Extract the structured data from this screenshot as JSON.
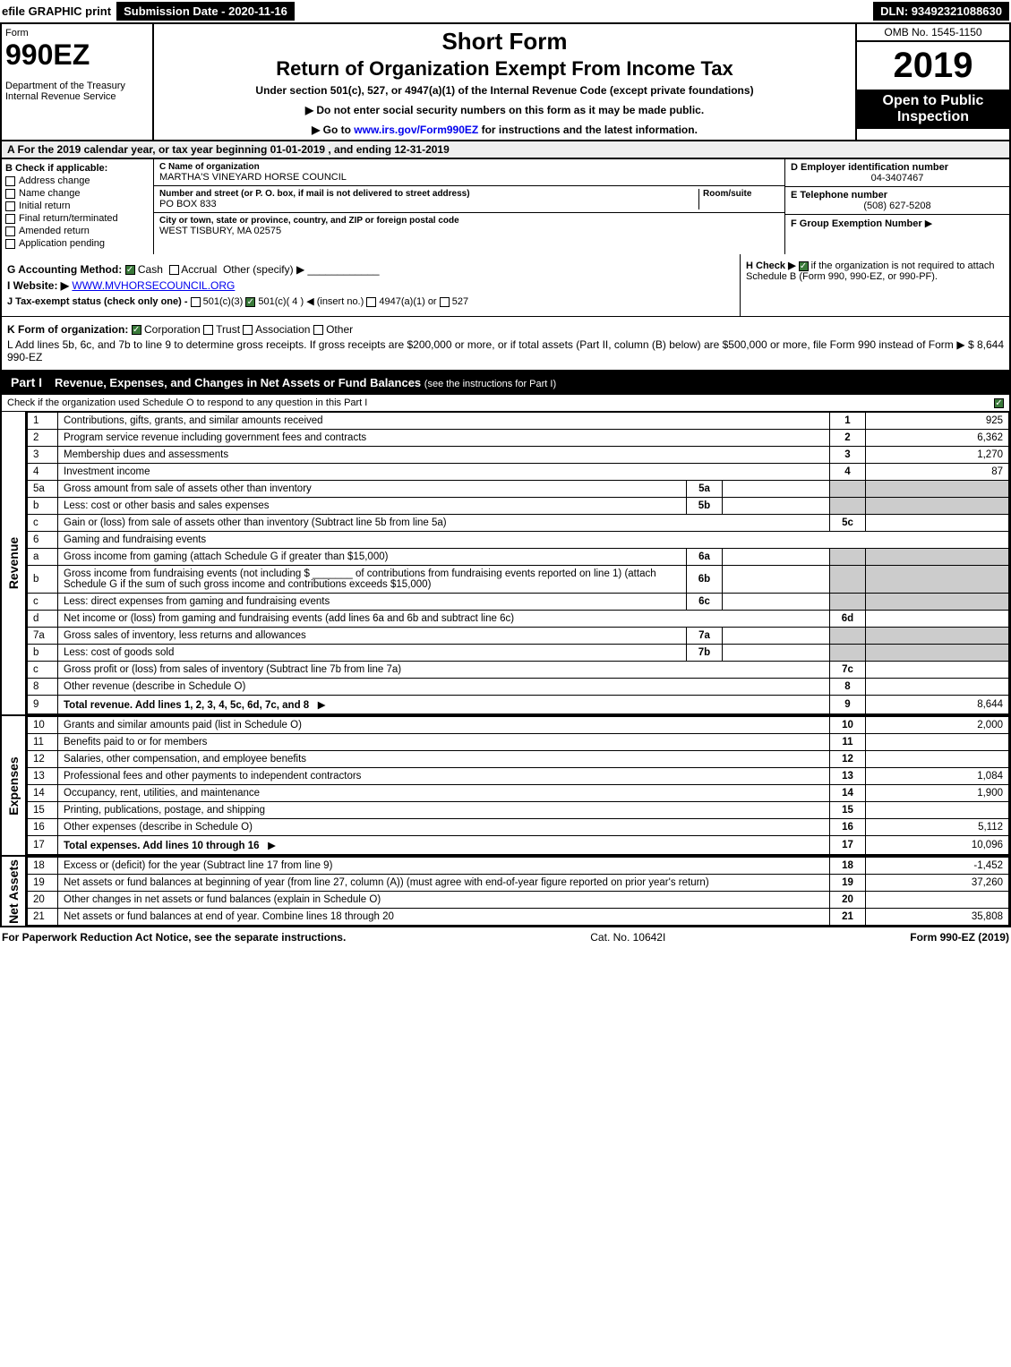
{
  "colors": {
    "black": "#000000",
    "white": "#ffffff",
    "grey_header": "#eeeeee",
    "grey_cell": "#cccccc",
    "check_green": "#3a7a3a",
    "link_blue": "#0000ee"
  },
  "top_bar": {
    "efile": "efile GRAPHIC print",
    "submission": "Submission Date - 2020-11-16",
    "dln": "DLN: 93492321088630"
  },
  "header": {
    "form_label": "Form",
    "form_number": "990EZ",
    "department": "Department of the Treasury\nInternal Revenue Service",
    "title_short": "Short Form",
    "title_main": "Return of Organization Exempt From Income Tax",
    "subtitle": "Under section 501(c), 527, or 4947(a)(1) of the Internal Revenue Code (except private foundations)",
    "note1": "▶ Do not enter social security numbers on this form as it may be made public.",
    "note2_pre": "▶ Go to ",
    "note2_link": "www.irs.gov/Form990EZ",
    "note2_post": " for instructions and the latest information.",
    "omb": "OMB No. 1545-1150",
    "year": "2019",
    "badge": "Open to Public Inspection"
  },
  "line_a": "A  For the 2019 calendar year, or tax year beginning 01-01-2019 , and ending 12-31-2019",
  "section_b": {
    "header": "B  Check if applicable:",
    "items": [
      {
        "label": "Address change",
        "checked": false
      },
      {
        "label": "Name change",
        "checked": false
      },
      {
        "label": "Initial return",
        "checked": false
      },
      {
        "label": "Final return/terminated",
        "checked": false
      },
      {
        "label": "Amended return",
        "checked": false
      },
      {
        "label": "Application pending",
        "checked": false
      }
    ]
  },
  "section_c": {
    "name_label": "C Name of organization",
    "name": "MARTHA'S VINEYARD HORSE COUNCIL",
    "street_label": "Number and street (or P. O. box, if mail is not delivered to street address)",
    "room_label": "Room/suite",
    "street": "PO BOX 833",
    "city_label": "City or town, state or province, country, and ZIP or foreign postal code",
    "city": "WEST TISBURY, MA  02575"
  },
  "section_d": {
    "label": "D Employer identification number",
    "value": "04-3407467"
  },
  "section_e": {
    "label": "E Telephone number",
    "value": "(508) 627-5208"
  },
  "section_f": {
    "label": "F Group Exemption Number",
    "arrow": "▶"
  },
  "section_g": {
    "label": "G Accounting Method:",
    "cash": "Cash",
    "accrual": "Accrual",
    "other": "Other (specify) ▶",
    "cash_checked": true
  },
  "section_h": {
    "label": "H  Check ▶",
    "text": "if the organization is not required to attach Schedule B (Form 990, 990-EZ, or 990-PF).",
    "checked": true
  },
  "section_i": {
    "label": "I Website: ▶",
    "value": "WWW.MVHORSECOUNCIL.ORG"
  },
  "section_j": {
    "label": "J Tax-exempt status (check only one) -",
    "opts": [
      {
        "txt": "501(c)(3)",
        "checked": false
      },
      {
        "txt": "501(c)( 4 ) ◀ (insert no.)",
        "checked": true
      },
      {
        "txt": "4947(a)(1) or",
        "checked": false
      },
      {
        "txt": "527",
        "checked": false
      }
    ]
  },
  "section_k": {
    "label": "K Form of organization:",
    "opts": [
      {
        "txt": "Corporation",
        "checked": true
      },
      {
        "txt": "Trust",
        "checked": false
      },
      {
        "txt": "Association",
        "checked": false
      },
      {
        "txt": "Other",
        "checked": false
      }
    ]
  },
  "section_l": {
    "text": "L Add lines 5b, 6c, and 7b to line 9 to determine gross receipts. If gross receipts are $200,000 or more, or if total assets (Part II, column (B) below) are $500,000 or more, file Form 990 instead of Form 990-EZ",
    "amount_prefix": "▶ $ ",
    "amount": "8,644"
  },
  "part1": {
    "tag": "Part I",
    "title": "Revenue, Expenses, and Changes in Net Assets or Fund Balances",
    "title_note": "(see the instructions for Part I)",
    "check_line": "Check if the organization used Schedule O to respond to any question in this Part I",
    "checked": true,
    "sections": [
      {
        "side": "Revenue",
        "rows": [
          {
            "no": "1",
            "desc": "Contributions, gifts, grants, and similar amounts received",
            "num": "1",
            "amt": "925"
          },
          {
            "no": "2",
            "desc": "Program service revenue including government fees and contracts",
            "num": "2",
            "amt": "6,362"
          },
          {
            "no": "3",
            "desc": "Membership dues and assessments",
            "num": "3",
            "amt": "1,270"
          },
          {
            "no": "4",
            "desc": "Investment income",
            "num": "4",
            "amt": "87"
          },
          {
            "no": "5a",
            "desc": "Gross amount from sale of assets other than inventory",
            "inbox": "5a",
            "grey_amt": true
          },
          {
            "no": "b",
            "desc": "Less: cost or other basis and sales expenses",
            "inbox": "5b",
            "grey_amt": true
          },
          {
            "no": "c",
            "desc": "Gain or (loss) from sale of assets other than inventory (Subtract line 5b from line 5a)",
            "num": "5c",
            "amt": ""
          },
          {
            "no": "6",
            "desc": "Gaming and fundraising events",
            "no_cols": true
          },
          {
            "no": "a",
            "desc": "Gross income from gaming (attach Schedule G if greater than $15,000)",
            "inbox": "6a",
            "grey_amt": true
          },
          {
            "no": "b",
            "desc": "Gross income from fundraising events (not including $ _______ of contributions from fundraising events reported on line 1) (attach Schedule G if the sum of such gross income and contributions exceeds $15,000)",
            "inbox": "6b",
            "grey_amt": true
          },
          {
            "no": "c",
            "desc": "Less: direct expenses from gaming and fundraising events",
            "inbox": "6c",
            "grey_amt": true
          },
          {
            "no": "d",
            "desc": "Net income or (loss) from gaming and fundraising events (add lines 6a and 6b and subtract line 6c)",
            "num": "6d",
            "amt": ""
          },
          {
            "no": "7a",
            "desc": "Gross sales of inventory, less returns and allowances",
            "inbox": "7a",
            "grey_amt": true
          },
          {
            "no": "b",
            "desc": "Less: cost of goods sold",
            "inbox": "7b",
            "grey_amt": true
          },
          {
            "no": "c",
            "desc": "Gross profit or (loss) from sales of inventory (Subtract line 7b from line 7a)",
            "num": "7c",
            "amt": ""
          },
          {
            "no": "8",
            "desc": "Other revenue (describe in Schedule O)",
            "num": "8",
            "amt": ""
          },
          {
            "no": "9",
            "desc": "Total revenue. Add lines 1, 2, 3, 4, 5c, 6d, 7c, and 8",
            "num": "9",
            "amt": "8,644",
            "bold": true,
            "arrow": true
          }
        ]
      },
      {
        "side": "Expenses",
        "rows": [
          {
            "no": "10",
            "desc": "Grants and similar amounts paid (list in Schedule O)",
            "num": "10",
            "amt": "2,000"
          },
          {
            "no": "11",
            "desc": "Benefits paid to or for members",
            "num": "11",
            "amt": ""
          },
          {
            "no": "12",
            "desc": "Salaries, other compensation, and employee benefits",
            "num": "12",
            "amt": ""
          },
          {
            "no": "13",
            "desc": "Professional fees and other payments to independent contractors",
            "num": "13",
            "amt": "1,084"
          },
          {
            "no": "14",
            "desc": "Occupancy, rent, utilities, and maintenance",
            "num": "14",
            "amt": "1,900"
          },
          {
            "no": "15",
            "desc": "Printing, publications, postage, and shipping",
            "num": "15",
            "amt": ""
          },
          {
            "no": "16",
            "desc": "Other expenses (describe in Schedule O)",
            "num": "16",
            "amt": "5,112"
          },
          {
            "no": "17",
            "desc": "Total expenses. Add lines 10 through 16",
            "num": "17",
            "amt": "10,096",
            "bold": true,
            "arrow": true
          }
        ]
      },
      {
        "side": "Net Assets",
        "rows": [
          {
            "no": "18",
            "desc": "Excess or (deficit) for the year (Subtract line 17 from line 9)",
            "num": "18",
            "amt": "-1,452"
          },
          {
            "no": "19",
            "desc": "Net assets or fund balances at beginning of year (from line 27, column (A)) (must agree with end-of-year figure reported on prior year's return)",
            "num": "19",
            "amt": "37,260"
          },
          {
            "no": "20",
            "desc": "Other changes in net assets or fund balances (explain in Schedule O)",
            "num": "20",
            "amt": ""
          },
          {
            "no": "21",
            "desc": "Net assets or fund balances at end of year. Combine lines 18 through 20",
            "num": "21",
            "amt": "35,808"
          }
        ]
      }
    ]
  },
  "footer": {
    "left": "For Paperwork Reduction Act Notice, see the separate instructions.",
    "center": "Cat. No. 10642I",
    "right": "Form 990-EZ (2019)"
  }
}
